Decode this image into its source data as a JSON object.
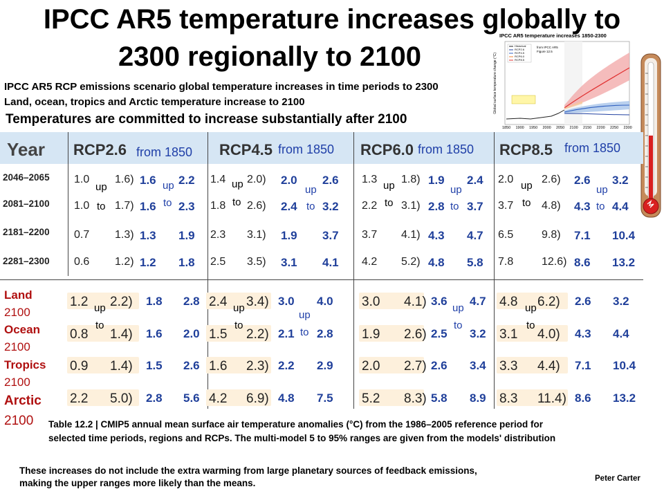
{
  "title_line1": "IPCC AR5 temperature increases globally to",
  "title_line2": "2300 regionally to 2100",
  "subtitle_line1": "IPCC AR5 RCP emissions scenario global temperature increases in time periods to 2300",
  "subtitle_line2": "Land, ocean, tropics and Arctic temperature increase to 2100",
  "committed": "Temperatures are committed to increase substantially  after 2100",
  "inset_title": "IPCC AR5 temperature increases 1850-2300",
  "inset_ylabel": "Global surface temperature change (°C)",
  "inset_xticks": [
    "1850",
    "1900",
    "1950",
    "2000",
    "2050",
    "2100",
    "2150",
    "2200",
    "2250",
    "2300"
  ],
  "inset_legend": [
    "Historical",
    "RCP2.6",
    "RCP4.5",
    "RCP6.0",
    "RCP8.5"
  ],
  "inset_note_1": "from IPCC AR5",
  "inset_note_2": "Figure 12.5",
  "header": {
    "year": "Year",
    "rcp26": "RCP2.6",
    "rcp45": "RCP4.5",
    "rcp60": "RCP6.0",
    "rcp85": "RCP8.5",
    "from": "from 1850"
  },
  "periods": [
    "2046–2065",
    "2081–2100",
    "2181–2200",
    "2281–2300"
  ],
  "global_table": {
    "rcp26": {
      "left": [
        "1.0",
        "1.0",
        "0.7",
        "0.6"
      ],
      "right": [
        "1.6)",
        "1.7)",
        "1.3)",
        "1.2)"
      ],
      "b1": [
        "1.6",
        "1.6",
        "1.3",
        "1.2"
      ],
      "b2": [
        "2.2",
        "2.3",
        "1.9",
        "1.8"
      ]
    },
    "rcp45": {
      "left": [
        "1.4",
        "1.8",
        "2.3",
        "2.5"
      ],
      "right": [
        "2.0)",
        "2.6)",
        "3.1)",
        "3.5)"
      ],
      "b1": [
        "2.0",
        "2.4",
        "1.9",
        "3.1"
      ],
      "b2": [
        "2.6",
        "3.2",
        "3.7",
        "4.1"
      ]
    },
    "rcp60": {
      "left": [
        "1.3",
        "2.2",
        "3.7",
        "4.2"
      ],
      "right": [
        "1.8)",
        "3.1)",
        "4.1)",
        "5.2)"
      ],
      "b1": [
        "1.9",
        "2.8",
        "4.3",
        "4.8"
      ],
      "b2": [
        "2.4",
        "3.7",
        "4.7",
        "5.8"
      ]
    },
    "rcp85": {
      "left": [
        "2.0",
        "3.7",
        "6.5",
        "7.8"
      ],
      "right": [
        "2.6)",
        "4.8)",
        "9.8)",
        "12.6)"
      ],
      "b1": [
        "2.6",
        "4.3",
        "7.1",
        "8.6"
      ],
      "b2": [
        "3.2",
        "4.4",
        "10.4",
        "13.2"
      ]
    }
  },
  "up": "up",
  "to": "to",
  "regions": [
    {
      "name": "Land",
      "year": " 2100"
    },
    {
      "name": "Ocean",
      "year": "2100"
    },
    {
      "name": "Tropics",
      "year": "2100"
    },
    {
      "name": "Arctic",
      "year": "2100"
    }
  ],
  "regional_table": {
    "rcp26": {
      "left": [
        "1.2",
        "0.8",
        "0.9",
        "2.2"
      ],
      "right": [
        "2.2)",
        "1.4)",
        "1.4)",
        "5.0)"
      ],
      "b1": [
        "1.8",
        "1.6",
        "1.5",
        "2.8"
      ],
      "b2": [
        "2.8",
        "2.0",
        "2.6",
        "5.6"
      ]
    },
    "rcp45": {
      "left": [
        "2.4",
        "1.5",
        "1.6",
        "4.2"
      ],
      "right": [
        "3.4)",
        "2.2)",
        "2.3)",
        "6.9)"
      ],
      "b1": [
        "3.0",
        "2.1",
        "2.2",
        "4.8"
      ],
      "b2": [
        "4.0",
        "2.8",
        "2.9",
        "7.5"
      ]
    },
    "rcp60": {
      "left": [
        "3.0",
        "1.9",
        "2.0",
        "5.2"
      ],
      "right": [
        "4.1)",
        "2.6)",
        "2.7)",
        "8.3)"
      ],
      "b1": [
        "3.6",
        "2.5",
        "2.6",
        "5.8"
      ],
      "b2": [
        "4.7",
        "3.2",
        "3.4",
        "8.9"
      ]
    },
    "rcp85": {
      "left": [
        "4.8",
        "3.1",
        "3.3",
        "8.3"
      ],
      "right": [
        "6.2)",
        "4.0)",
        "4.4)",
        "11.4)"
      ],
      "b1": [
        "2.6",
        "4.3",
        "7.1",
        "8.6"
      ],
      "b2": [
        "3.2",
        "4.4",
        "10.4",
        "13.2"
      ]
    }
  },
  "caption_line1": "Table 12.2 | CMIP5 annual mean surface air temperature anomalies (°C) from the 1986–2005 reference period for",
  "caption_line2": "selected time periods, regions and RCPs. The multi-model  5 to 95% ranges are given from the models' distribution",
  "footer_line1": "These increases do not include the extra warming  from large planetary sources of feedback emissions,",
  "footer_line2": "making the upper ranges more likely than the means.",
  "signature": "Peter Carter",
  "colors": {
    "header_bg": "#d6e6f4",
    "blue": "#1f3f9a",
    "red": "#b01010"
  }
}
